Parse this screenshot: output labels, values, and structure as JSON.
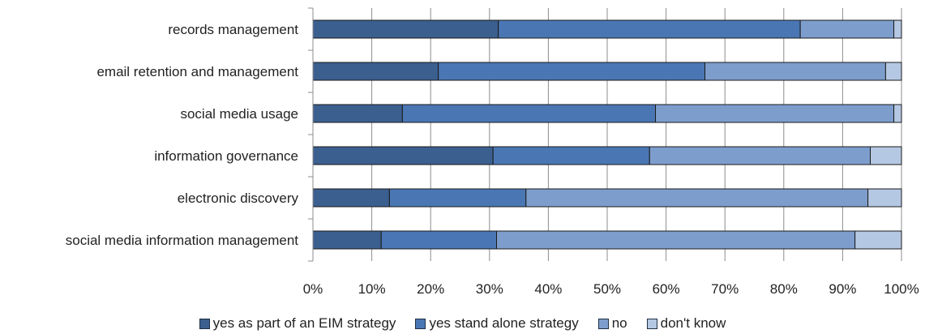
{
  "chart_data": {
    "type": "bar",
    "orientation": "horizontal",
    "stacked": true,
    "categories": [
      "records management",
      "email retention and management",
      "social media usage",
      "information governance",
      "electronic discovery",
      "social media information management"
    ],
    "series": [
      {
        "name": "yes as part of an EIM strategy",
        "color": "#3b5f8f",
        "values": [
          31.5,
          21.3,
          15.2,
          30.6,
          13.0,
          11.6
        ]
      },
      {
        "name": "yes stand alone strategy",
        "color": "#4a77b4",
        "values": [
          51.3,
          45.3,
          43.0,
          26.6,
          23.2,
          19.6
        ]
      },
      {
        "name": "no",
        "color": "#7d9ecd",
        "values": [
          15.9,
          30.7,
          40.5,
          37.5,
          58.1,
          60.9
        ]
      },
      {
        "name": "don't know",
        "color": "#b5c8e3",
        "values": [
          1.3,
          2.7,
          1.3,
          5.3,
          5.7,
          7.9
        ]
      }
    ],
    "x_ticks": [
      "0%",
      "10%",
      "20%",
      "30%",
      "40%",
      "50%",
      "60%",
      "70%",
      "80%",
      "90%",
      "100%"
    ],
    "xlim": [
      0,
      100
    ],
    "grid": true,
    "legend_position": "bottom"
  }
}
